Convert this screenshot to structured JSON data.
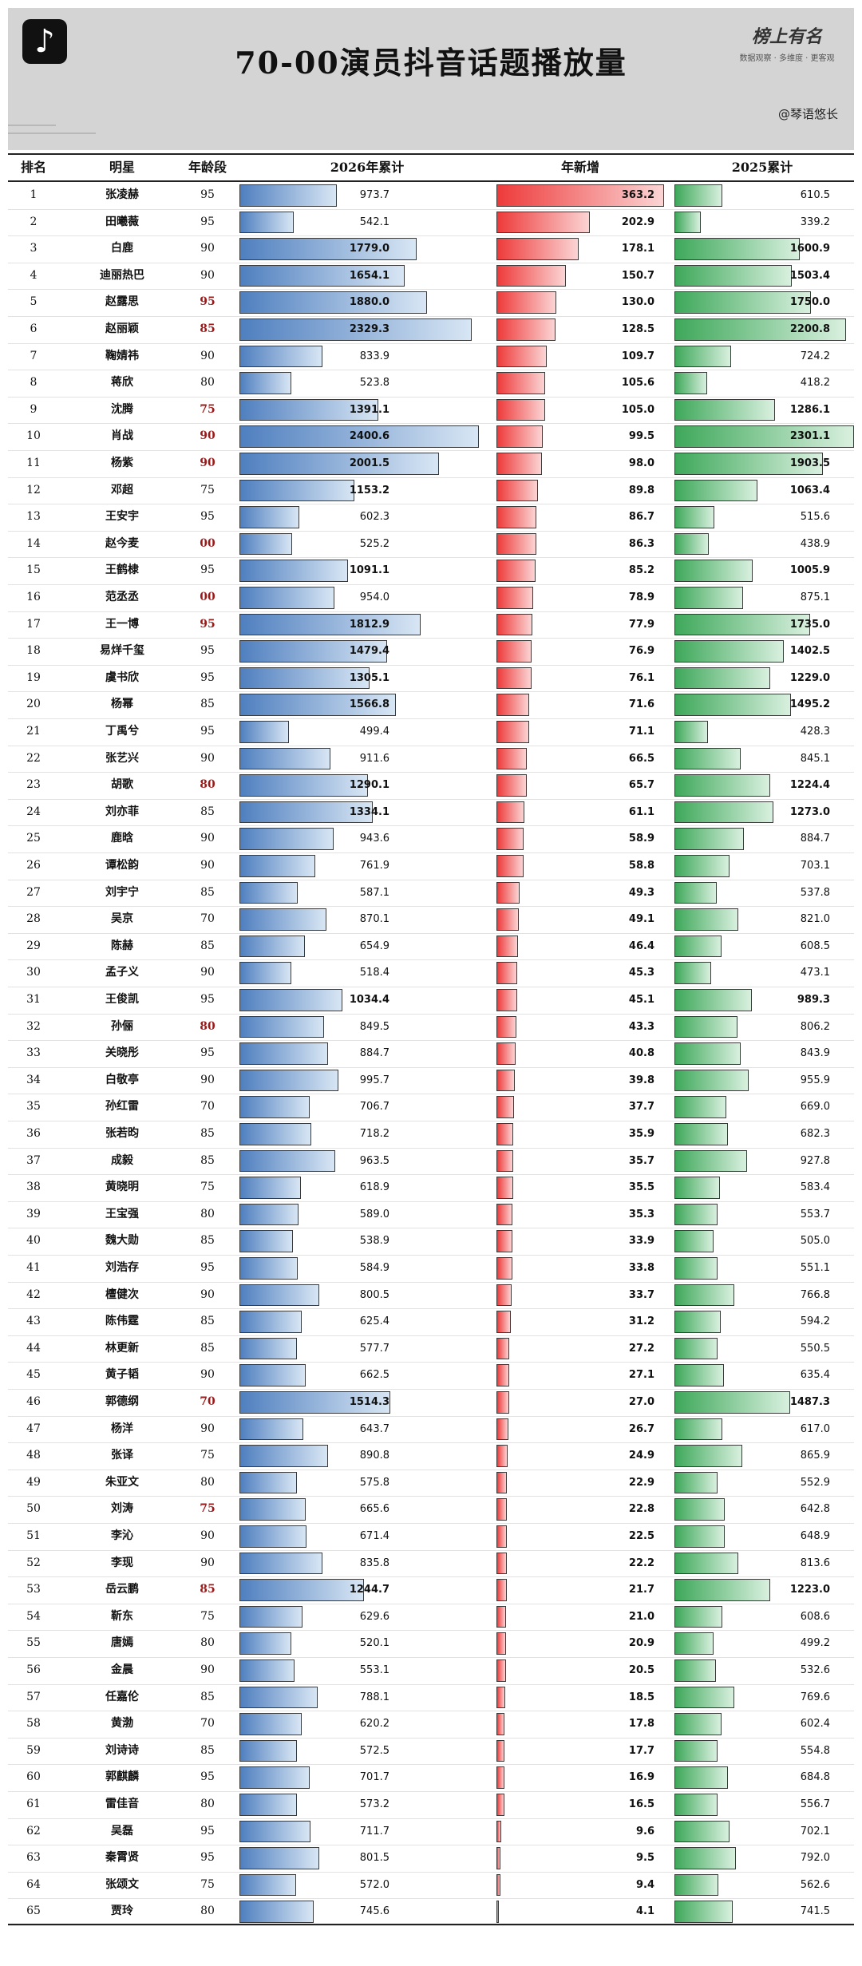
{
  "header": {
    "title": "70-00演员抖音话题播放量",
    "brand_name": "榜上有名",
    "brand_tagline": "数据观察 · 多维度 · 更客观",
    "author": "@琴语悠长",
    "watermark": "榜上有名小组"
  },
  "columns": {
    "rank": "排名",
    "name": "明星",
    "age": "年龄段",
    "total_2026": "2026年累计",
    "new": "年新增",
    "total_2025": "2025累计"
  },
  "chart_data": {
    "type": "table",
    "title": "70-00演员抖音话题播放量",
    "series": [
      {
        "name": "2026年累计"
      },
      {
        "name": "年新增"
      },
      {
        "name": "2025累计"
      }
    ],
    "max_2026": 2400.6,
    "max_new": 363.2,
    "max_2025": 2301.1,
    "rows": [
      {
        "rank": "1",
        "name": "张凌赫",
        "age": "95",
        "v2026": "973.7",
        "vnew": "363.2",
        "v2025": "610.5"
      },
      {
        "rank": "2",
        "name": "田曦薇",
        "age": "95",
        "v2026": "542.1",
        "vnew": "202.9",
        "v2025": "339.2"
      },
      {
        "rank": "3",
        "name": "白鹿",
        "age": "90",
        "v2026": "1779.0",
        "vnew": "178.1",
        "v2025": "1600.9"
      },
      {
        "rank": "4",
        "name": "迪丽热巴",
        "age": "90",
        "v2026": "1654.1",
        "vnew": "150.7",
        "v2025": "1503.4"
      },
      {
        "rank": "5",
        "name": "赵露思",
        "age": "95",
        "v2026": "1880.0",
        "vnew": "130.0",
        "v2025": "1750.0"
      },
      {
        "rank": "6",
        "name": "赵丽颖",
        "age": "85",
        "v2026": "2329.3",
        "vnew": "128.5",
        "v2025": "2200.8"
      },
      {
        "rank": "7",
        "name": "鞠婧祎",
        "age": "90",
        "v2026": "833.9",
        "vnew": "109.7",
        "v2025": "724.2"
      },
      {
        "rank": "8",
        "name": "蒋欣",
        "age": "80",
        "v2026": "523.8",
        "vnew": "105.6",
        "v2025": "418.2"
      },
      {
        "rank": "9",
        "name": "沈腾",
        "age": "75",
        "v2026": "1391.1",
        "vnew": "105.0",
        "v2025": "1286.1"
      },
      {
        "rank": "10",
        "name": "肖战",
        "age": "90",
        "v2026": "2400.6",
        "vnew": "99.5",
        "v2025": "2301.1"
      },
      {
        "rank": "11",
        "name": "杨紫",
        "age": "90",
        "v2026": "2001.5",
        "vnew": "98.0",
        "v2025": "1903.5"
      },
      {
        "rank": "12",
        "name": "邓超",
        "age": "75",
        "v2026": "1153.2",
        "vnew": "89.8",
        "v2025": "1063.4"
      },
      {
        "rank": "13",
        "name": "王安宇",
        "age": "95",
        "v2026": "602.3",
        "vnew": "86.7",
        "v2025": "515.6"
      },
      {
        "rank": "14",
        "name": "赵今麦",
        "age": "00",
        "v2026": "525.2",
        "vnew": "86.3",
        "v2025": "438.9"
      },
      {
        "rank": "15",
        "name": "王鹤棣",
        "age": "95",
        "v2026": "1091.1",
        "vnew": "85.2",
        "v2025": "1005.9"
      },
      {
        "rank": "16",
        "name": "范丞丞",
        "age": "00",
        "v2026": "954.0",
        "vnew": "78.9",
        "v2025": "875.1"
      },
      {
        "rank": "17",
        "name": "王一博",
        "age": "95",
        "v2026": "1812.9",
        "vnew": "77.9",
        "v2025": "1735.0"
      },
      {
        "rank": "18",
        "name": "易烊千玺",
        "age": "95",
        "v2026": "1479.4",
        "vnew": "76.9",
        "v2025": "1402.5"
      },
      {
        "rank": "19",
        "name": "虞书欣",
        "age": "95",
        "v2026": "1305.1",
        "vnew": "76.1",
        "v2025": "1229.0"
      },
      {
        "rank": "20",
        "name": "杨幂",
        "age": "85",
        "v2026": "1566.8",
        "vnew": "71.6",
        "v2025": "1495.2"
      },
      {
        "rank": "21",
        "name": "丁禹兮",
        "age": "95",
        "v2026": "499.4",
        "vnew": "71.1",
        "v2025": "428.3"
      },
      {
        "rank": "22",
        "name": "张艺兴",
        "age": "90",
        "v2026": "911.6",
        "vnew": "66.5",
        "v2025": "845.1"
      },
      {
        "rank": "23",
        "name": "胡歌",
        "age": "80",
        "v2026": "1290.1",
        "vnew": "65.7",
        "v2025": "1224.4"
      },
      {
        "rank": "24",
        "name": "刘亦菲",
        "age": "85",
        "v2026": "1334.1",
        "vnew": "61.1",
        "v2025": "1273.0"
      },
      {
        "rank": "25",
        "name": "鹿晗",
        "age": "90",
        "v2026": "943.6",
        "vnew": "58.9",
        "v2025": "884.7"
      },
      {
        "rank": "26",
        "name": "谭松韵",
        "age": "90",
        "v2026": "761.9",
        "vnew": "58.8",
        "v2025": "703.1"
      },
      {
        "rank": "27",
        "name": "刘宇宁",
        "age": "85",
        "v2026": "587.1",
        "vnew": "49.3",
        "v2025": "537.8"
      },
      {
        "rank": "28",
        "name": "吴京",
        "age": "70",
        "v2026": "870.1",
        "vnew": "49.1",
        "v2025": "821.0"
      },
      {
        "rank": "29",
        "name": "陈赫",
        "age": "85",
        "v2026": "654.9",
        "vnew": "46.4",
        "v2025": "608.5"
      },
      {
        "rank": "30",
        "name": "孟子义",
        "age": "90",
        "v2026": "518.4",
        "vnew": "45.3",
        "v2025": "473.1"
      },
      {
        "rank": "31",
        "name": "王俊凯",
        "age": "95",
        "v2026": "1034.4",
        "vnew": "45.1",
        "v2025": "989.3"
      },
      {
        "rank": "32",
        "name": "孙俪",
        "age": "80",
        "v2026": "849.5",
        "vnew": "43.3",
        "v2025": "806.2"
      },
      {
        "rank": "33",
        "name": "关晓彤",
        "age": "95",
        "v2026": "884.7",
        "vnew": "40.8",
        "v2025": "843.9"
      },
      {
        "rank": "34",
        "name": "白敬亭",
        "age": "90",
        "v2026": "995.7",
        "vnew": "39.8",
        "v2025": "955.9"
      },
      {
        "rank": "35",
        "name": "孙红雷",
        "age": "70",
        "v2026": "706.7",
        "vnew": "37.7",
        "v2025": "669.0"
      },
      {
        "rank": "36",
        "name": "张若昀",
        "age": "85",
        "v2026": "718.2",
        "vnew": "35.9",
        "v2025": "682.3"
      },
      {
        "rank": "37",
        "name": "成毅",
        "age": "85",
        "v2026": "963.5",
        "vnew": "35.7",
        "v2025": "927.8"
      },
      {
        "rank": "38",
        "name": "黄晓明",
        "age": "75",
        "v2026": "618.9",
        "vnew": "35.5",
        "v2025": "583.4"
      },
      {
        "rank": "39",
        "name": "王宝强",
        "age": "80",
        "v2026": "589.0",
        "vnew": "35.3",
        "v2025": "553.7"
      },
      {
        "rank": "40",
        "name": "魏大勋",
        "age": "85",
        "v2026": "538.9",
        "vnew": "33.9",
        "v2025": "505.0"
      },
      {
        "rank": "41",
        "name": "刘浩存",
        "age": "95",
        "v2026": "584.9",
        "vnew": "33.8",
        "v2025": "551.1"
      },
      {
        "rank": "42",
        "name": "檀健次",
        "age": "90",
        "v2026": "800.5",
        "vnew": "33.7",
        "v2025": "766.8"
      },
      {
        "rank": "43",
        "name": "陈伟霆",
        "age": "85",
        "v2026": "625.4",
        "vnew": "31.2",
        "v2025": "594.2"
      },
      {
        "rank": "44",
        "name": "林更新",
        "age": "85",
        "v2026": "577.7",
        "vnew": "27.2",
        "v2025": "550.5"
      },
      {
        "rank": "45",
        "name": "黄子韬",
        "age": "90",
        "v2026": "662.5",
        "vnew": "27.1",
        "v2025": "635.4"
      },
      {
        "rank": "46",
        "name": "郭德纲",
        "age": "70",
        "v2026": "1514.3",
        "vnew": "27.0",
        "v2025": "1487.3"
      },
      {
        "rank": "47",
        "name": "杨洋",
        "age": "90",
        "v2026": "643.7",
        "vnew": "26.7",
        "v2025": "617.0"
      },
      {
        "rank": "48",
        "name": "张译",
        "age": "75",
        "v2026": "890.8",
        "vnew": "24.9",
        "v2025": "865.9"
      },
      {
        "rank": "49",
        "name": "朱亚文",
        "age": "80",
        "v2026": "575.8",
        "vnew": "22.9",
        "v2025": "552.9"
      },
      {
        "rank": "50",
        "name": "刘涛",
        "age": "75",
        "v2026": "665.6",
        "vnew": "22.8",
        "v2025": "642.8"
      },
      {
        "rank": "51",
        "name": "李沁",
        "age": "90",
        "v2026": "671.4",
        "vnew": "22.5",
        "v2025": "648.9"
      },
      {
        "rank": "52",
        "name": "李现",
        "age": "90",
        "v2026": "835.8",
        "vnew": "22.2",
        "v2025": "813.6"
      },
      {
        "rank": "53",
        "name": "岳云鹏",
        "age": "85",
        "v2026": "1244.7",
        "vnew": "21.7",
        "v2025": "1223.0"
      },
      {
        "rank": "54",
        "name": "靳东",
        "age": "75",
        "v2026": "629.6",
        "vnew": "21.0",
        "v2025": "608.6"
      },
      {
        "rank": "55",
        "name": "唐嫣",
        "age": "80",
        "v2026": "520.1",
        "vnew": "20.9",
        "v2025": "499.2"
      },
      {
        "rank": "56",
        "name": "金晨",
        "age": "90",
        "v2026": "553.1",
        "vnew": "20.5",
        "v2025": "532.6"
      },
      {
        "rank": "57",
        "name": "任嘉伦",
        "age": "85",
        "v2026": "788.1",
        "vnew": "18.5",
        "v2025": "769.6"
      },
      {
        "rank": "58",
        "name": "黄渤",
        "age": "70",
        "v2026": "620.2",
        "vnew": "17.8",
        "v2025": "602.4"
      },
      {
        "rank": "59",
        "name": "刘诗诗",
        "age": "85",
        "v2026": "572.5",
        "vnew": "17.7",
        "v2025": "554.8"
      },
      {
        "rank": "60",
        "name": "郭麒麟",
        "age": "95",
        "v2026": "701.7",
        "vnew": "16.9",
        "v2025": "684.8"
      },
      {
        "rank": "61",
        "name": "雷佳音",
        "age": "80",
        "v2026": "573.2",
        "vnew": "16.5",
        "v2025": "556.7"
      },
      {
        "rank": "62",
        "name": "吴磊",
        "age": "95",
        "v2026": "711.7",
        "vnew": "9.6",
        "v2025": "702.1"
      },
      {
        "rank": "63",
        "name": "秦霄贤",
        "age": "95",
        "v2026": "801.5",
        "vnew": "9.5",
        "v2025": "792.0"
      },
      {
        "rank": "64",
        "name": "张颂文",
        "age": "75",
        "v2026": "572.0",
        "vnew": "9.4",
        "v2025": "562.6"
      },
      {
        "rank": "65",
        "name": "贾玲",
        "age": "80",
        "v2026": "745.6",
        "vnew": "4.1",
        "v2025": "741.5"
      }
    ],
    "highlight_age_rows": [
      "5",
      "6",
      "9",
      "10",
      "11",
      "14",
      "16",
      "17",
      "23",
      "32",
      "46",
      "50",
      "53"
    ],
    "bold_value_rows": [
      "3",
      "4",
      "5",
      "6",
      "9",
      "10",
      "11",
      "12",
      "15",
      "17",
      "18",
      "19",
      "20",
      "23",
      "24",
      "31",
      "46",
      "53"
    ]
  }
}
